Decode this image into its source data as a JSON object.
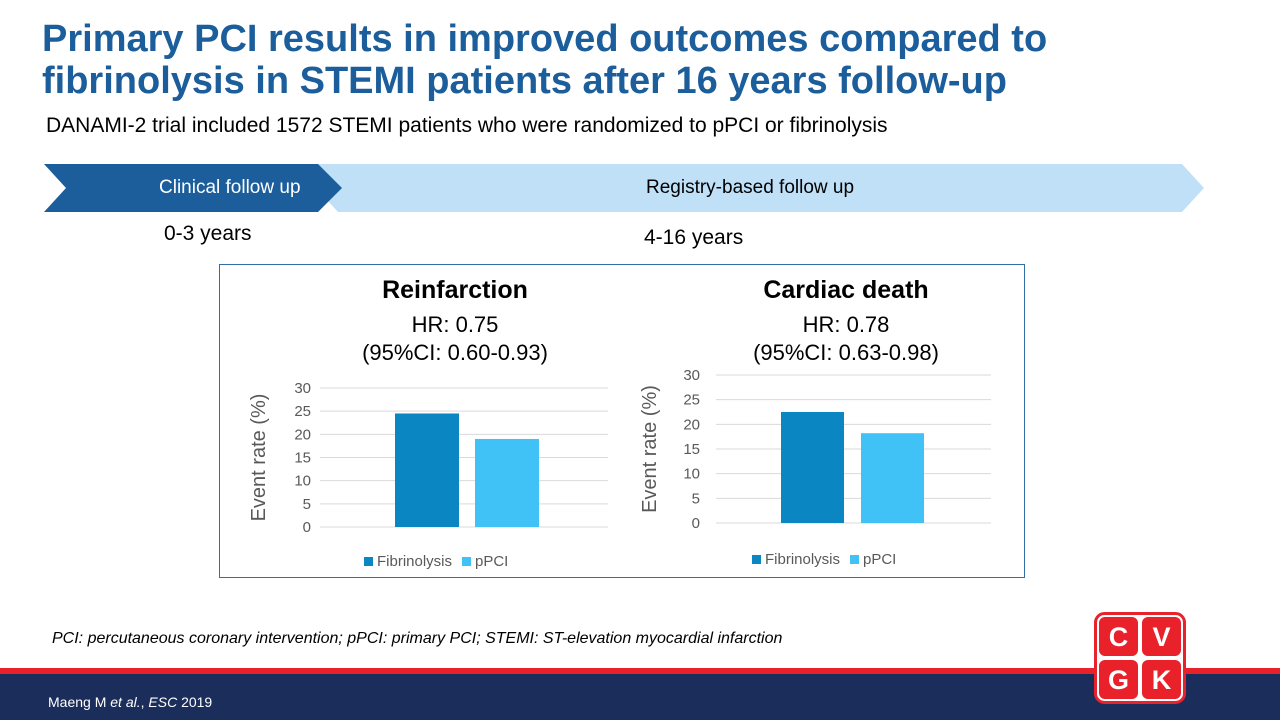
{
  "header": {
    "title": "Primary PCI results in improved outcomes compared to fibrinolysis in STEMI patients after 16 years follow-up",
    "subtitle": "DANAMI-2 trial included 1572 STEMI patients who were randomized to pPCI or fibrinolysis"
  },
  "timeline": {
    "clinical_label": "Clinical follow up",
    "registry_label": "Registry-based follow up",
    "clinical_years": "0-3 years",
    "registry_years": "4-16 years",
    "colors": {
      "clinical": "#1b5e9b",
      "registry": "#bfe0f7"
    }
  },
  "chart_data": [
    {
      "type": "bar",
      "title": "Reinfarction",
      "subtitle_line1": "HR: 0.75",
      "subtitle_line2": "(95%CI: 0.60-0.93)",
      "ylabel": "Event rate (%)",
      "ylim": [
        0,
        30
      ],
      "yticks": [
        0,
        5,
        10,
        15,
        20,
        25,
        30
      ],
      "grid": true,
      "legend_position": "bottom",
      "series": [
        {
          "name": "Fibrinolysis",
          "values": [
            24.5
          ],
          "color": "#0a86c2"
        },
        {
          "name": "pPCI",
          "values": [
            19
          ],
          "color": "#41c2f7"
        }
      ]
    },
    {
      "type": "bar",
      "title": "Cardiac death",
      "subtitle_line1": "HR: 0.78",
      "subtitle_line2": "(95%CI: 0.63-0.98)",
      "ylabel": "Event rate (%)",
      "ylim": [
        0,
        30
      ],
      "yticks": [
        0,
        5,
        10,
        15,
        20,
        25,
        30
      ],
      "grid": true,
      "legend_position": "bottom",
      "series": [
        {
          "name": "Fibrinolysis",
          "values": [
            22.5
          ],
          "color": "#0a86c2"
        },
        {
          "name": "pPCI",
          "values": [
            18.2
          ],
          "color": "#41c2f7"
        }
      ]
    }
  ],
  "footnote": "PCI: percutaneous coronary intervention; pPCI: primary PCI; STEMI: ST-elevation myocardial infarction",
  "footer": {
    "ref_authors": "Maeng M ",
    "ref_etal": "et al.",
    "ref_sep": ", ",
    "ref_journal": "ESC",
    "ref_year": " 2019"
  },
  "logo": {
    "letters": [
      "C",
      "V",
      "G",
      "K"
    ],
    "color": "#e8212b"
  }
}
